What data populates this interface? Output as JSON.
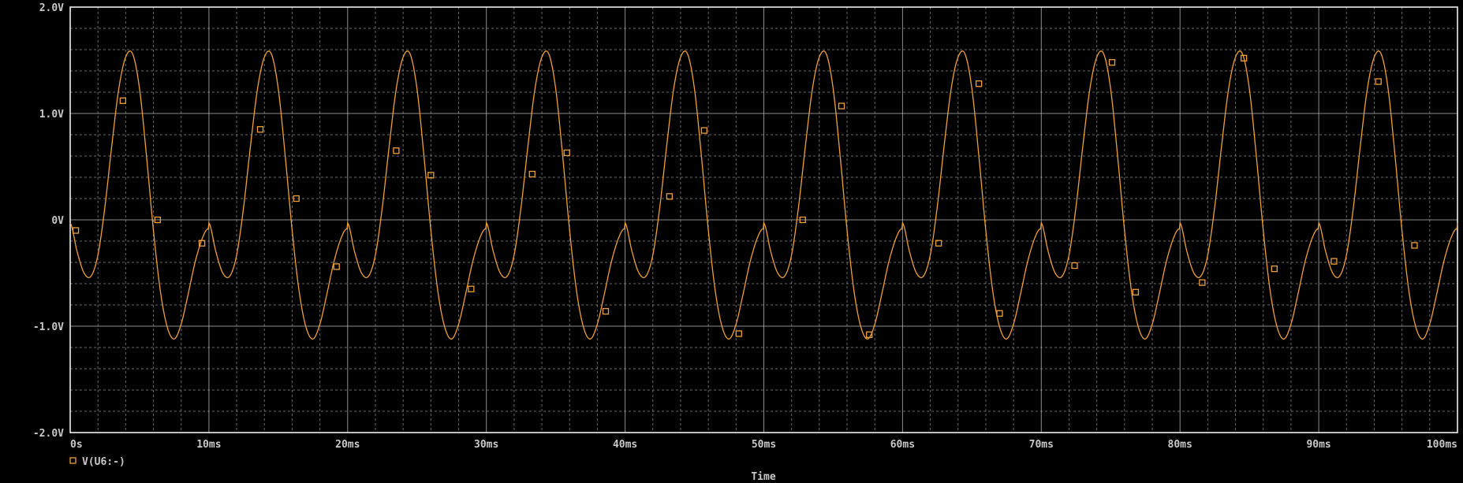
{
  "chart_data": {
    "type": "line",
    "background": "#000000",
    "grid": true,
    "grid_color": "#bdbdbd",
    "axis_color": "#ffffff",
    "trace_color": "#f0a030",
    "xlabel": "Time",
    "ylabel": "",
    "xlim": [
      0,
      100
    ],
    "x_unit": "ms",
    "ylim": [
      -2.0,
      2.0
    ],
    "y_unit": "V",
    "x_ticks": [
      {
        "value": 0,
        "label": "0s"
      },
      {
        "value": 10,
        "label": "10ms"
      },
      {
        "value": 20,
        "label": "20ms"
      },
      {
        "value": 30,
        "label": "30ms"
      },
      {
        "value": 40,
        "label": "40ms"
      },
      {
        "value": 50,
        "label": "50ms"
      },
      {
        "value": 60,
        "label": "60ms"
      },
      {
        "value": 70,
        "label": "70ms"
      },
      {
        "value": 80,
        "label": "80ms"
      },
      {
        "value": 90,
        "label": "90ms"
      },
      {
        "value": 100,
        "label": "100ms"
      }
    ],
    "y_ticks": [
      {
        "value": 2.0,
        "label": "2.0V"
      },
      {
        "value": 1.0,
        "label": "1.0V"
      },
      {
        "value": 0,
        "label": "0V"
      },
      {
        "value": -1.0,
        "label": "-1.0V"
      },
      {
        "value": -2.0,
        "label": "-2.0V"
      }
    ],
    "legend_position": "bottom-left",
    "series": [
      {
        "name": "V(U6:-)",
        "marker": "square",
        "x": [
          0,
          0.5,
          1.0,
          1.5,
          2.0,
          2.5,
          3.0,
          3.5,
          4.0,
          4.5,
          5.0,
          5.5,
          6.0,
          6.5,
          7.0,
          7.5,
          8.0,
          8.5,
          9.0,
          9.5,
          10.0
        ],
        "y": [
          -0.03,
          -0.3,
          -0.5,
          -0.53,
          -0.33,
          0.12,
          0.7,
          1.23,
          1.53,
          1.56,
          1.23,
          0.6,
          -0.1,
          -0.67,
          -1.01,
          -1.12,
          -0.98,
          -0.7,
          -0.4,
          -0.18,
          -0.09
        ]
      }
    ],
    "period_ms": 10,
    "marker_points": [
      {
        "x": 0.4,
        "y": -0.1
      },
      {
        "x": 3.8,
        "y": 1.12
      },
      {
        "x": 6.3,
        "y": 0.0
      },
      {
        "x": 9.5,
        "y": -0.22
      },
      {
        "x": 13.7,
        "y": 0.85
      },
      {
        "x": 16.3,
        "y": 0.2
      },
      {
        "x": 19.2,
        "y": -0.44
      },
      {
        "x": 23.5,
        "y": 0.65
      },
      {
        "x": 26.0,
        "y": 0.42
      },
      {
        "x": 28.9,
        "y": -0.65
      },
      {
        "x": 33.3,
        "y": 0.43
      },
      {
        "x": 35.8,
        "y": 0.63
      },
      {
        "x": 38.6,
        "y": -0.86
      },
      {
        "x": 43.2,
        "y": 0.22
      },
      {
        "x": 45.7,
        "y": 0.84
      },
      {
        "x": 48.2,
        "y": -1.07
      },
      {
        "x": 52.8,
        "y": 0.0
      },
      {
        "x": 55.6,
        "y": 1.07
      },
      {
        "x": 57.6,
        "y": -1.08
      },
      {
        "x": 62.6,
        "y": -0.22
      },
      {
        "x": 65.5,
        "y": 1.28
      },
      {
        "x": 67.0,
        "y": -0.88
      },
      {
        "x": 72.4,
        "y": -0.43
      },
      {
        "x": 75.1,
        "y": 1.48
      },
      {
        "x": 76.8,
        "y": -0.68
      },
      {
        "x": 81.6,
        "y": -0.59
      },
      {
        "x": 84.6,
        "y": 1.52
      },
      {
        "x": 86.8,
        "y": -0.46
      },
      {
        "x": 91.1,
        "y": -0.39
      },
      {
        "x": 94.3,
        "y": 1.3
      },
      {
        "x": 96.9,
        "y": -0.24
      }
    ]
  }
}
